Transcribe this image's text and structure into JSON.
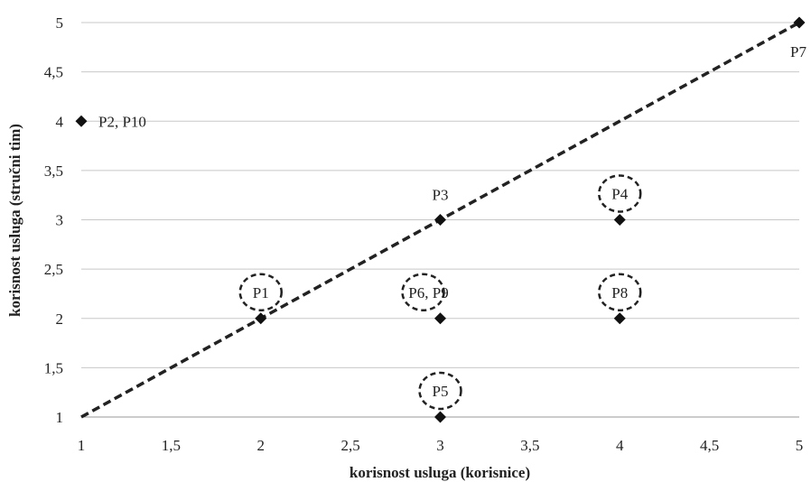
{
  "chart_data": {
    "type": "scatter",
    "xlabel": "korisnost usluga (korisnice)",
    "ylabel": "korisnost usluga (stručni tim)",
    "xlim": [
      1,
      5
    ],
    "ylim": [
      1,
      5
    ],
    "x_ticks": [
      "1",
      "1,5",
      "2",
      "2,5",
      "3",
      "3,5",
      "4",
      "4,5",
      "5"
    ],
    "y_ticks": [
      "1",
      "1,5",
      "2",
      "2,5",
      "3",
      "3,5",
      "4",
      "4,5",
      "5"
    ],
    "grid": "horizontal",
    "points": [
      {
        "label": "P1",
        "x": 2,
        "y": 2,
        "circled": true
      },
      {
        "label": "P2, P10",
        "x": 1,
        "y": 4,
        "circled": false
      },
      {
        "label": "P3",
        "x": 3,
        "y": 3,
        "circled": false
      },
      {
        "label": "P4",
        "x": 4,
        "y": 3,
        "circled": true
      },
      {
        "label": "P5",
        "x": 3,
        "y": 1,
        "circled": true
      },
      {
        "label": "P6, P9",
        "x": 3,
        "y": 2,
        "circled": true
      },
      {
        "label": "P7",
        "x": 5,
        "y": 5,
        "circled": false
      },
      {
        "label": "P8",
        "x": 4,
        "y": 2,
        "circled": true
      }
    ],
    "reference_line": {
      "from": [
        1,
        1
      ],
      "to": [
        5,
        5
      ],
      "style": "dashed"
    }
  }
}
